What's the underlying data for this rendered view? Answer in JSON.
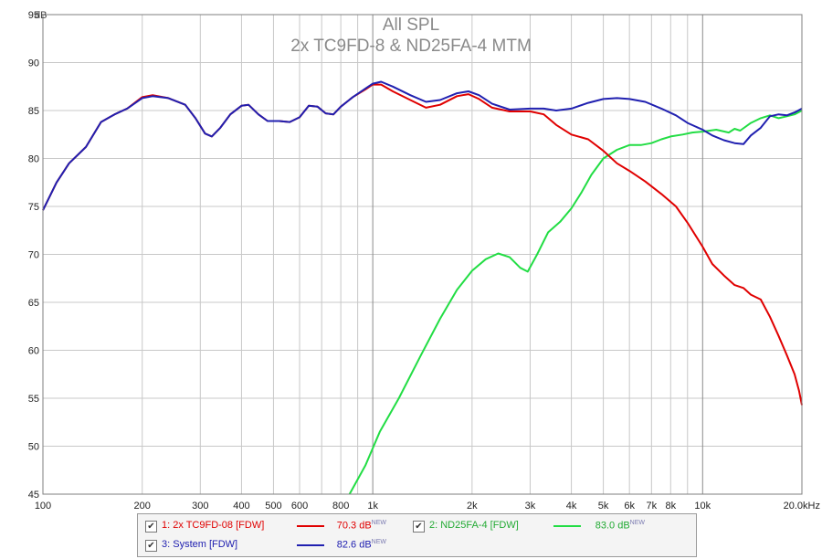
{
  "chart_data": {
    "type": "line",
    "title": "All SPL",
    "subtitle": "2x TC9FD-8 & ND25FA-4 MTM",
    "ylabel": "dB",
    "xscale": "log",
    "xlim": [
      100,
      20000
    ],
    "ylim": [
      45,
      95
    ],
    "yticks": [
      45,
      50,
      55,
      60,
      65,
      70,
      75,
      80,
      85,
      90,
      95
    ],
    "xtick_labels": [
      {
        "v": 100,
        "t": "100"
      },
      {
        "v": 200,
        "t": "200"
      },
      {
        "v": 300,
        "t": "300"
      },
      {
        "v": 400,
        "t": "400"
      },
      {
        "v": 500,
        "t": "500"
      },
      {
        "v": 600,
        "t": "600"
      },
      {
        "v": 800,
        "t": "800"
      },
      {
        "v": 1000,
        "t": "1k"
      },
      {
        "v": 2000,
        "t": "2k"
      },
      {
        "v": 3000,
        "t": "3k"
      },
      {
        "v": 4000,
        "t": "4k"
      },
      {
        "v": 5000,
        "t": "5k"
      },
      {
        "v": 6000,
        "t": "6k"
      },
      {
        "v": 7000,
        "t": "7k"
      },
      {
        "v": 8000,
        "t": "8k"
      },
      {
        "v": 10000,
        "t": "10k"
      },
      {
        "v": 20000,
        "t": "20.0kHz"
      }
    ],
    "grid": true,
    "series": [
      {
        "name": "1: 2x TC9FD-08 [FDW]",
        "color": "#e00000",
        "points": [
          [
            100,
            74.6
          ],
          [
            110,
            77.5
          ],
          [
            120,
            79.5
          ],
          [
            135,
            81.2
          ],
          [
            150,
            83.8
          ],
          [
            165,
            84.6
          ],
          [
            180,
            85.2
          ],
          [
            200,
            86.4
          ],
          [
            215,
            86.6
          ],
          [
            240,
            86.3
          ],
          [
            270,
            85.6
          ],
          [
            290,
            84.2
          ],
          [
            310,
            82.6
          ],
          [
            325,
            82.3
          ],
          [
            345,
            83.2
          ],
          [
            370,
            84.6
          ],
          [
            400,
            85.5
          ],
          [
            420,
            85.6
          ],
          [
            450,
            84.6
          ],
          [
            480,
            83.9
          ],
          [
            520,
            83.9
          ],
          [
            560,
            83.8
          ],
          [
            600,
            84.3
          ],
          [
            640,
            85.5
          ],
          [
            680,
            85.4
          ],
          [
            720,
            84.7
          ],
          [
            760,
            84.6
          ],
          [
            800,
            85.4
          ],
          [
            870,
            86.4
          ],
          [
            950,
            87.2
          ],
          [
            1000,
            87.7
          ],
          [
            1060,
            87.7
          ],
          [
            1150,
            87.0
          ],
          [
            1300,
            86.1
          ],
          [
            1450,
            85.3
          ],
          [
            1600,
            85.6
          ],
          [
            1800,
            86.5
          ],
          [
            1950,
            86.7
          ],
          [
            2100,
            86.2
          ],
          [
            2300,
            85.3
          ],
          [
            2600,
            84.9
          ],
          [
            3000,
            84.9
          ],
          [
            3300,
            84.6
          ],
          [
            3600,
            83.5
          ],
          [
            4000,
            82.5
          ],
          [
            4500,
            82.0
          ],
          [
            5000,
            80.8
          ],
          [
            5500,
            79.5
          ],
          [
            6000,
            78.7
          ],
          [
            6700,
            77.6
          ],
          [
            7500,
            76.3
          ],
          [
            8300,
            75.0
          ],
          [
            9000,
            73.3
          ],
          [
            10000,
            70.8
          ],
          [
            10700,
            69.0
          ],
          [
            11600,
            67.8
          ],
          [
            12500,
            66.8
          ],
          [
            13300,
            66.5
          ],
          [
            14000,
            65.8
          ],
          [
            15000,
            65.3
          ],
          [
            16000,
            63.5
          ],
          [
            17000,
            61.5
          ],
          [
            18000,
            59.5
          ],
          [
            19000,
            57.5
          ],
          [
            19600,
            55.8
          ],
          [
            20000,
            54.3
          ]
        ]
      },
      {
        "name": "2: ND25FA-4 [FDW]",
        "color": "#22dd44",
        "points": [
          [
            850,
            45.0
          ],
          [
            950,
            48.0
          ],
          [
            1050,
            51.5
          ],
          [
            1200,
            55.0
          ],
          [
            1400,
            59.5
          ],
          [
            1600,
            63.3
          ],
          [
            1800,
            66.3
          ],
          [
            2000,
            68.3
          ],
          [
            2200,
            69.5
          ],
          [
            2400,
            70.1
          ],
          [
            2600,
            69.7
          ],
          [
            2800,
            68.6
          ],
          [
            2950,
            68.2
          ],
          [
            3150,
            70.0
          ],
          [
            3400,
            72.3
          ],
          [
            3700,
            73.4
          ],
          [
            4000,
            74.8
          ],
          [
            4300,
            76.5
          ],
          [
            4600,
            78.3
          ],
          [
            5000,
            80.0
          ],
          [
            5500,
            80.9
          ],
          [
            6000,
            81.4
          ],
          [
            6500,
            81.4
          ],
          [
            7000,
            81.6
          ],
          [
            7500,
            82.0
          ],
          [
            8000,
            82.3
          ],
          [
            8700,
            82.5
          ],
          [
            9300,
            82.7
          ],
          [
            10000,
            82.8
          ],
          [
            11000,
            83.0
          ],
          [
            12000,
            82.7
          ],
          [
            12500,
            83.1
          ],
          [
            13000,
            82.9
          ],
          [
            14000,
            83.7
          ],
          [
            15000,
            84.2
          ],
          [
            16000,
            84.5
          ],
          [
            17000,
            84.2
          ],
          [
            18000,
            84.4
          ],
          [
            19000,
            84.6
          ],
          [
            20000,
            85.0
          ]
        ]
      },
      {
        "name": "3: System [FDW]",
        "color": "#2020b0",
        "points": [
          [
            100,
            74.6
          ],
          [
            110,
            77.5
          ],
          [
            120,
            79.5
          ],
          [
            135,
            81.2
          ],
          [
            150,
            83.8
          ],
          [
            165,
            84.6
          ],
          [
            180,
            85.2
          ],
          [
            200,
            86.3
          ],
          [
            215,
            86.5
          ],
          [
            240,
            86.3
          ],
          [
            270,
            85.6
          ],
          [
            290,
            84.2
          ],
          [
            310,
            82.6
          ],
          [
            325,
            82.3
          ],
          [
            345,
            83.2
          ],
          [
            370,
            84.6
          ],
          [
            400,
            85.5
          ],
          [
            420,
            85.6
          ],
          [
            450,
            84.6
          ],
          [
            480,
            83.9
          ],
          [
            520,
            83.9
          ],
          [
            560,
            83.8
          ],
          [
            600,
            84.3
          ],
          [
            640,
            85.5
          ],
          [
            680,
            85.4
          ],
          [
            720,
            84.7
          ],
          [
            760,
            84.6
          ],
          [
            800,
            85.4
          ],
          [
            870,
            86.4
          ],
          [
            950,
            87.3
          ],
          [
            1000,
            87.8
          ],
          [
            1060,
            88.0
          ],
          [
            1150,
            87.5
          ],
          [
            1300,
            86.6
          ],
          [
            1450,
            85.9
          ],
          [
            1600,
            86.1
          ],
          [
            1800,
            86.8
          ],
          [
            1950,
            87.0
          ],
          [
            2100,
            86.6
          ],
          [
            2300,
            85.7
          ],
          [
            2600,
            85.1
          ],
          [
            3000,
            85.2
          ],
          [
            3300,
            85.2
          ],
          [
            3600,
            85.0
          ],
          [
            4000,
            85.2
          ],
          [
            4500,
            85.8
          ],
          [
            5000,
            86.2
          ],
          [
            5500,
            86.3
          ],
          [
            6000,
            86.2
          ],
          [
            6700,
            85.9
          ],
          [
            7500,
            85.2
          ],
          [
            8300,
            84.5
          ],
          [
            9000,
            83.7
          ],
          [
            10000,
            83.0
          ],
          [
            10700,
            82.4
          ],
          [
            11600,
            81.9
          ],
          [
            12500,
            81.6
          ],
          [
            13300,
            81.5
          ],
          [
            14000,
            82.4
          ],
          [
            15000,
            83.2
          ],
          [
            16000,
            84.4
          ],
          [
            17000,
            84.6
          ],
          [
            18000,
            84.5
          ],
          [
            19000,
            84.8
          ],
          [
            20000,
            85.2
          ]
        ]
      }
    ]
  },
  "legend": {
    "items": [
      {
        "check": "✔",
        "name": "1: 2x TC9FD-08 [FDW]",
        "value": "70.3 dB",
        "new": "NEW",
        "color": "#e00000"
      },
      {
        "check": "✔",
        "name": "2: ND25FA-4 [FDW]",
        "value": "83.0 dB",
        "new": "NEW",
        "color": "#22dd44"
      },
      {
        "check": "✔",
        "name": "3: System [FDW]",
        "value": "82.6 dB",
        "new": "NEW",
        "color": "#2020b0"
      }
    ]
  }
}
